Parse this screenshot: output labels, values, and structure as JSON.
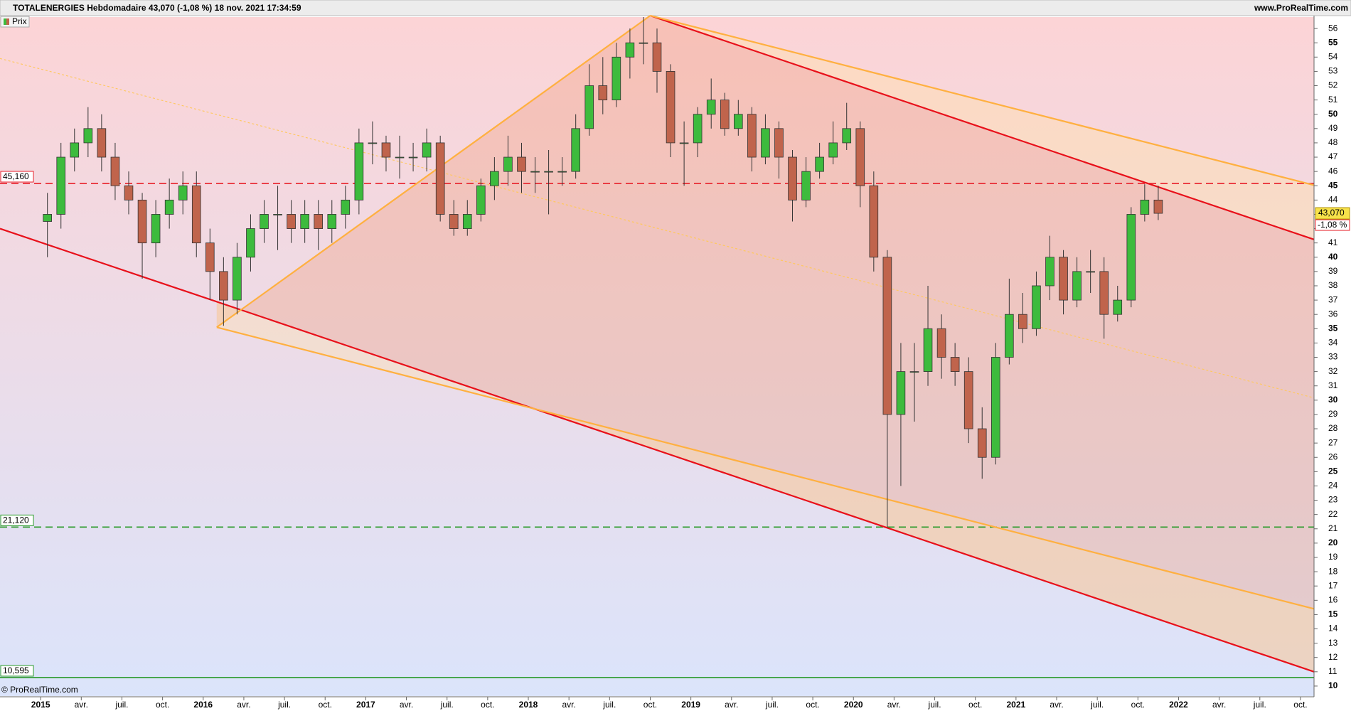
{
  "chart_data": {
    "type": "candlestick",
    "title": "TOTALENERGIES Hebdomadaire 43,070 (-1,08 %) 18 nov. 2021 17:34:59",
    "source": "www.ProRealTime.com",
    "copyright": "© ProRealTime.com",
    "legend": "Prix",
    "up_color": "#3dbb3d",
    "down_color": "#c0644c",
    "x": [
      "2015-01",
      "2015-02",
      "2015-03",
      "2015-04",
      "2015-05",
      "2015-06",
      "2015-07",
      "2015-08",
      "2015-09",
      "2015-10",
      "2015-11",
      "2015-12",
      "2016-01",
      "2016-02",
      "2016-03",
      "2016-04",
      "2016-05",
      "2016-06",
      "2016-07",
      "2016-08",
      "2016-09",
      "2016-10",
      "2016-11",
      "2016-12",
      "2017-01",
      "2017-02",
      "2017-03",
      "2017-04",
      "2017-05",
      "2017-06",
      "2017-07",
      "2017-08",
      "2017-09",
      "2017-10",
      "2017-11",
      "2017-12",
      "2018-01",
      "2018-02",
      "2018-03",
      "2018-04",
      "2018-05",
      "2018-06",
      "2018-07",
      "2018-08",
      "2018-09",
      "2018-10",
      "2018-11",
      "2018-12",
      "2019-01",
      "2019-02",
      "2019-03",
      "2019-04",
      "2019-05",
      "2019-06",
      "2019-07",
      "2019-08",
      "2019-09",
      "2019-10",
      "2019-11",
      "2019-12",
      "2020-01",
      "2020-02",
      "2020-03",
      "2020-04",
      "2020-05",
      "2020-06",
      "2020-07",
      "2020-08",
      "2020-09",
      "2020-10",
      "2020-11",
      "2020-12",
      "2021-01",
      "2021-02",
      "2021-03",
      "2021-04",
      "2021-05",
      "2021-06",
      "2021-07",
      "2021-08",
      "2021-09",
      "2021-10",
      "2021-11"
    ],
    "open": [
      42.5,
      43,
      47,
      48,
      49,
      47,
      45,
      44,
      41,
      43,
      44,
      45,
      41,
      39,
      37,
      40,
      42,
      43,
      43,
      42,
      43,
      42,
      43,
      44,
      48,
      48,
      47,
      47,
      47,
      48,
      43,
      42,
      43,
      45,
      46,
      47,
      46,
      46,
      46,
      46,
      49,
      52,
      51,
      54,
      55,
      55,
      53,
      48,
      48,
      50,
      51,
      49,
      50,
      47,
      49,
      47,
      44,
      46,
      47,
      48,
      49,
      45,
      40,
      29,
      32,
      32,
      35,
      33,
      32,
      28,
      26,
      33,
      36,
      35,
      38,
      40,
      37,
      39,
      39,
      36,
      37,
      43,
      44
    ],
    "high": [
      44.5,
      48,
      49,
      50.5,
      50,
      48,
      46,
      44.5,
      44,
      45.5,
      46,
      46,
      42,
      40,
      41,
      43,
      44,
      45,
      44,
      44,
      44,
      44,
      45,
      49,
      49.5,
      48.5,
      48.5,
      48,
      49,
      48.5,
      44,
      44,
      45.5,
      47,
      48.5,
      48,
      47,
      47.5,
      47,
      50,
      53.5,
      54,
      55,
      56,
      56.8,
      56,
      53.5,
      49.5,
      50.5,
      52.5,
      51.5,
      51,
      50.5,
      50,
      49.5,
      47.5,
      47,
      48,
      49.5,
      50.8,
      49.5,
      46,
      40.5,
      34,
      34,
      38,
      36,
      34,
      33,
      29.5,
      34,
      38.5,
      37.5,
      39,
      41.5,
      40.5,
      40,
      40.5,
      40,
      38,
      43.5,
      45.1,
      45
    ],
    "low": [
      40,
      42,
      46,
      47,
      46,
      44,
      43,
      38.5,
      40,
      42,
      43,
      40,
      37,
      35.2,
      36,
      39,
      41,
      40.5,
      41,
      41,
      40.5,
      41,
      42,
      43,
      46.5,
      46,
      45.5,
      46,
      46,
      42.5,
      41.5,
      41.5,
      42.5,
      44,
      45,
      44.5,
      44.5,
      43,
      45,
      45.5,
      48.5,
      50,
      50.5,
      52.5,
      53.5,
      51.5,
      47,
      45,
      47,
      49,
      48.5,
      48.5,
      46,
      46.5,
      45.5,
      42.5,
      43.5,
      45.5,
      46.5,
      47.5,
      43.5,
      39,
      21.12,
      24,
      28.5,
      31,
      31.5,
      31,
      27,
      24.5,
      25.5,
      32.5,
      34,
      34.5,
      37,
      36,
      36.5,
      37.5,
      34.3,
      35.5,
      36.5,
      42.5,
      42.6
    ],
    "close": [
      43,
      47,
      48,
      49,
      47,
      45,
      44,
      41,
      43,
      44,
      45,
      41,
      39,
      37,
      40,
      42,
      43,
      43,
      42,
      43,
      42,
      43,
      44,
      48,
      48,
      47,
      47,
      47,
      48,
      43,
      42,
      43,
      45,
      46,
      47,
      46,
      46,
      46,
      46,
      49,
      52,
      51,
      54,
      55,
      55,
      53,
      48,
      48,
      50,
      51,
      49,
      50,
      47,
      49,
      47,
      44,
      46,
      47,
      48,
      49,
      45,
      40,
      29,
      32,
      32,
      35,
      33,
      32,
      28,
      26,
      33,
      36,
      35,
      38,
      40,
      37,
      39,
      39,
      36,
      37,
      43,
      44,
      43.07
    ],
    "xlim": [
      "2014-10",
      "2022-11"
    ],
    "xticks": [
      {
        "value": "2015-01",
        "label": "2015"
      },
      {
        "value": "2015-04",
        "label": "avr."
      },
      {
        "value": "2015-07",
        "label": "juil."
      },
      {
        "value": "2015-10",
        "label": "oct."
      },
      {
        "value": "2016-01",
        "label": "2016"
      },
      {
        "value": "2016-04",
        "label": "avr."
      },
      {
        "value": "2016-07",
        "label": "juil."
      },
      {
        "value": "2016-10",
        "label": "oct."
      },
      {
        "value": "2017-01",
        "label": "2017"
      },
      {
        "value": "2017-04",
        "label": "avr."
      },
      {
        "value": "2017-07",
        "label": "juil."
      },
      {
        "value": "2017-10",
        "label": "oct."
      },
      {
        "value": "2018-01",
        "label": "2018"
      },
      {
        "value": "2018-04",
        "label": "avr."
      },
      {
        "value": "2018-07",
        "label": "juil."
      },
      {
        "value": "2018-10",
        "label": "oct."
      },
      {
        "value": "2019-01",
        "label": "2019"
      },
      {
        "value": "2019-04",
        "label": "avr."
      },
      {
        "value": "2019-07",
        "label": "juil."
      },
      {
        "value": "2019-10",
        "label": "oct."
      },
      {
        "value": "2020-01",
        "label": "2020"
      },
      {
        "value": "2020-04",
        "label": "avr."
      },
      {
        "value": "2020-07",
        "label": "juil."
      },
      {
        "value": "2020-10",
        "label": "oct."
      },
      {
        "value": "2021-01",
        "label": "2021"
      },
      {
        "value": "2021-04",
        "label": "avr."
      },
      {
        "value": "2021-07",
        "label": "juil."
      },
      {
        "value": "2021-10",
        "label": "oct."
      },
      {
        "value": "2022-01",
        "label": "2022"
      },
      {
        "value": "2022-04",
        "label": "avr."
      },
      {
        "value": "2022-07",
        "label": "juil."
      },
      {
        "value": "2022-10",
        "label": "oct."
      }
    ],
    "ylim": [
      9.3,
      56.8
    ],
    "yticks": [
      10,
      11,
      12,
      13,
      14,
      15,
      16,
      17,
      18,
      19,
      20,
      21,
      22,
      23,
      24,
      25,
      26,
      27,
      28,
      29,
      30,
      31,
      32,
      33,
      34,
      35,
      36,
      37,
      38,
      39,
      40,
      41,
      42,
      43,
      44,
      45,
      46,
      47,
      48,
      49,
      50,
      51,
      52,
      53,
      54,
      55,
      56
    ],
    "grid": false,
    "hlines": [
      {
        "value": 45.16,
        "label": "45,160",
        "color": "#e8202a",
        "style": "dashed"
      },
      {
        "value": 21.12,
        "label": "21,120",
        "color": "#2a9a2a",
        "style": "dashed"
      },
      {
        "value": 10.595,
        "label": "10,595",
        "color": "#2a9a2a",
        "style": "solid"
      }
    ],
    "last": {
      "value": 43.07,
      "label": "43,070",
      "change": "-1,08 %"
    },
    "trendlines": [
      {
        "x": [
          "2018-10",
          "2022-11"
        ],
        "y": [
          56.9,
          41.24
        ],
        "color": "#e8101a",
        "style": "solid"
      },
      {
        "x": [
          "2014-10",
          "2022-11"
        ],
        "y": [
          42.0,
          11.0
        ],
        "color": "#e8101a",
        "style": "solid"
      },
      {
        "x": [
          "2018-10",
          "2022-11"
        ],
        "y": [
          56.9,
          45.04
        ],
        "color": "#ffb040",
        "style": "solid"
      },
      {
        "x": [
          "2016-02",
          "2022-11"
        ],
        "y": [
          35.1,
          15.4
        ],
        "color": "#ffb040",
        "style": "solid"
      },
      {
        "x": [
          "2016-02",
          "2018-10"
        ],
        "y": [
          35.1,
          56.9
        ],
        "color": "#ffb040",
        "style": "solid"
      },
      {
        "x": [
          "2014-10",
          "2022-11"
        ],
        "y": [
          53.9,
          30.16
        ],
        "color": "#ffc860",
        "style": "dotted"
      }
    ]
  }
}
